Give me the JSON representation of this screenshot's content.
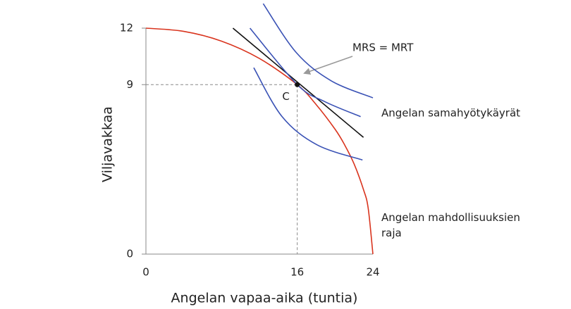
{
  "chart_data": {
    "type": "line",
    "xlabel": "Angelan vapaa-aika (tuntia)",
    "ylabel": "Viljavakkaa",
    "xlim": [
      0,
      24
    ],
    "ylim": [
      0,
      12
    ],
    "xticks": [
      0,
      16,
      24
    ],
    "yticks": [
      0,
      9,
      12
    ],
    "series": [
      {
        "color": "#d9341e",
        "x": [
          0,
          4,
          8,
          12,
          16,
          18,
          20,
          21,
          22,
          23,
          23.5,
          24
        ],
        "values": [
          12,
          11.83,
          11.31,
          10.39,
          9,
          7.94,
          6.63,
          5.81,
          4.8,
          3.43,
          2.44,
          0
        ]
      },
      {
        "color": "#111111",
        "x": [
          9.2,
          23
        ],
        "values": [
          12,
          6.2
        ]
      },
      {
        "color": "#3a52b5",
        "x": [
          12.4,
          15.9,
          19.6,
          24
        ],
        "values": [
          13.3,
          10.7,
          9.2,
          8.3
        ]
      },
      {
        "color": "#3a52b5",
        "x": [
          11,
          16,
          18.9,
          22.7
        ],
        "values": [
          12,
          9,
          8.1,
          7.3
        ]
      },
      {
        "color": "#3a52b5",
        "x": [
          11.4,
          14.4,
          18.1,
          22.9
        ],
        "values": [
          9.9,
          7.3,
          5.8,
          5
        ]
      }
    ],
    "point": {
      "x": 16,
      "y": 9,
      "label": "C"
    },
    "annotations": [
      "MRS = MRT",
      "Angelan samahyötykäyrät",
      "Angelan mahdollisuuksien raja"
    ]
  }
}
